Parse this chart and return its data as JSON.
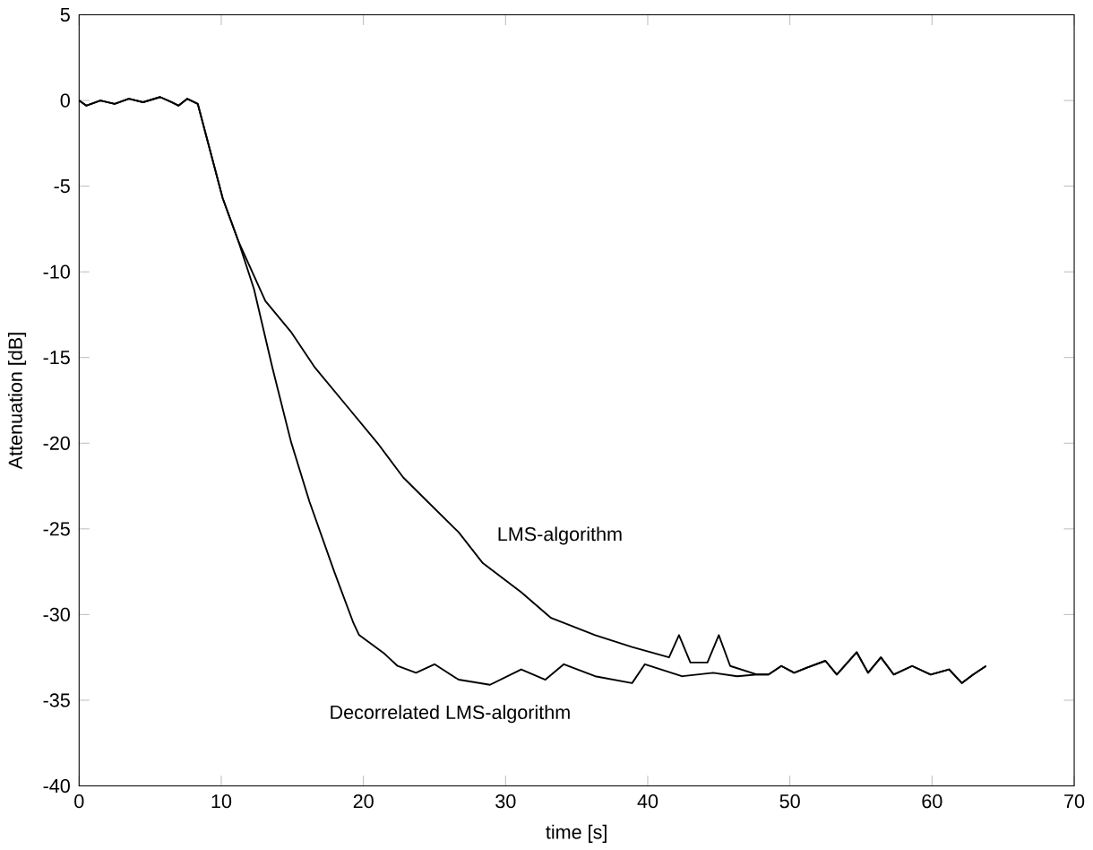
{
  "chart_data": {
    "type": "line",
    "xlabel": "time [s]",
    "ylabel": "Attenuation [dB]",
    "xlim": [
      0,
      70
    ],
    "ylim": [
      -40,
      5
    ],
    "xticks": [
      0,
      10,
      20,
      30,
      40,
      50,
      60,
      70
    ],
    "yticks": [
      -40,
      -35,
      -30,
      -25,
      -20,
      -15,
      -10,
      -5,
      0,
      5
    ],
    "grid": false,
    "marker": "none",
    "line_style": "solid",
    "series": [
      {
        "name": "LMS-algorithm",
        "color": "#000000",
        "x": [
          0,
          0.5,
          1.5,
          2.5,
          3.5,
          4.5,
          5.7,
          6.5,
          7.0,
          7.6,
          8.35,
          10.1,
          11.2,
          13.1,
          14.9,
          16.6,
          18.8,
          21.0,
          22.8,
          24.5,
          26.7,
          28.4,
          31.1,
          33.2,
          36.3,
          38.9,
          41.5,
          42.2,
          43.0,
          44.2,
          45.0,
          45.8,
          47.7,
          48.5,
          49.4,
          50.3,
          51.2,
          52.5,
          53.3,
          54.7,
          55.5,
          56.4,
          57.3,
          58.6,
          59.9,
          61.2,
          62.1,
          62.9,
          63.8
        ],
        "values": [
          0,
          -0.3,
          0,
          -0.2,
          0.1,
          -0.1,
          0.2,
          -0.1,
          -0.3,
          0.1,
          -0.2,
          -5.7,
          -8.2,
          -11.7,
          -13.5,
          -15.6,
          -17.8,
          -20.0,
          -22.0,
          -23.4,
          -25.2,
          -27.0,
          -28.7,
          -30.2,
          -31.2,
          -31.9,
          -32.5,
          -31.2,
          -32.8,
          -32.8,
          -31.2,
          -33.0,
          -33.5,
          -33.5,
          -33.0,
          -33.4,
          -33.1,
          -32.7,
          -33.5,
          -32.2,
          -33.4,
          -32.5,
          -33.5,
          -33.0,
          -33.5,
          -33.2,
          -34.0,
          -33.5,
          -33.0
        ]
      },
      {
        "name": "Decorrelated LMS-algorithm",
        "color": "#000000",
        "x": [
          0,
          0.5,
          1.5,
          2.5,
          3.5,
          4.5,
          5.7,
          6.5,
          7.0,
          7.6,
          8.35,
          10.1,
          11.2,
          12.3,
          13.6,
          14.9,
          16.2,
          17.95,
          19.3,
          19.7,
          21.5,
          22.4,
          23.7,
          25.0,
          26.7,
          28.9,
          31.1,
          32.8,
          34.1,
          36.3,
          38.9,
          39.8,
          42.4,
          44.6,
          46.3,
          47.7,
          48.5,
          49.4,
          50.3,
          51.2,
          52.5,
          53.3,
          54.7,
          55.5,
          56.4,
          57.3,
          58.6,
          59.9,
          61.2,
          62.1,
          62.9,
          63.8
        ],
        "values": [
          0,
          -0.3,
          0,
          -0.2,
          0.1,
          -0.1,
          0.2,
          -0.1,
          -0.3,
          0.1,
          -0.2,
          -5.7,
          -8.2,
          -11.0,
          -15.6,
          -19.9,
          -23.4,
          -27.5,
          -30.5,
          -31.2,
          -32.3,
          -33.0,
          -33.4,
          -32.9,
          -33.8,
          -34.1,
          -33.2,
          -33.8,
          -32.9,
          -33.6,
          -34.0,
          -32.9,
          -33.6,
          -33.4,
          -33.6,
          -33.5,
          -33.5,
          -33.0,
          -33.4,
          -33.1,
          -32.7,
          -33.5,
          -32.2,
          -33.4,
          -32.5,
          -33.5,
          -33.0,
          -33.5,
          -33.2,
          -34.0,
          -33.5,
          -33.0
        ]
      }
    ]
  }
}
